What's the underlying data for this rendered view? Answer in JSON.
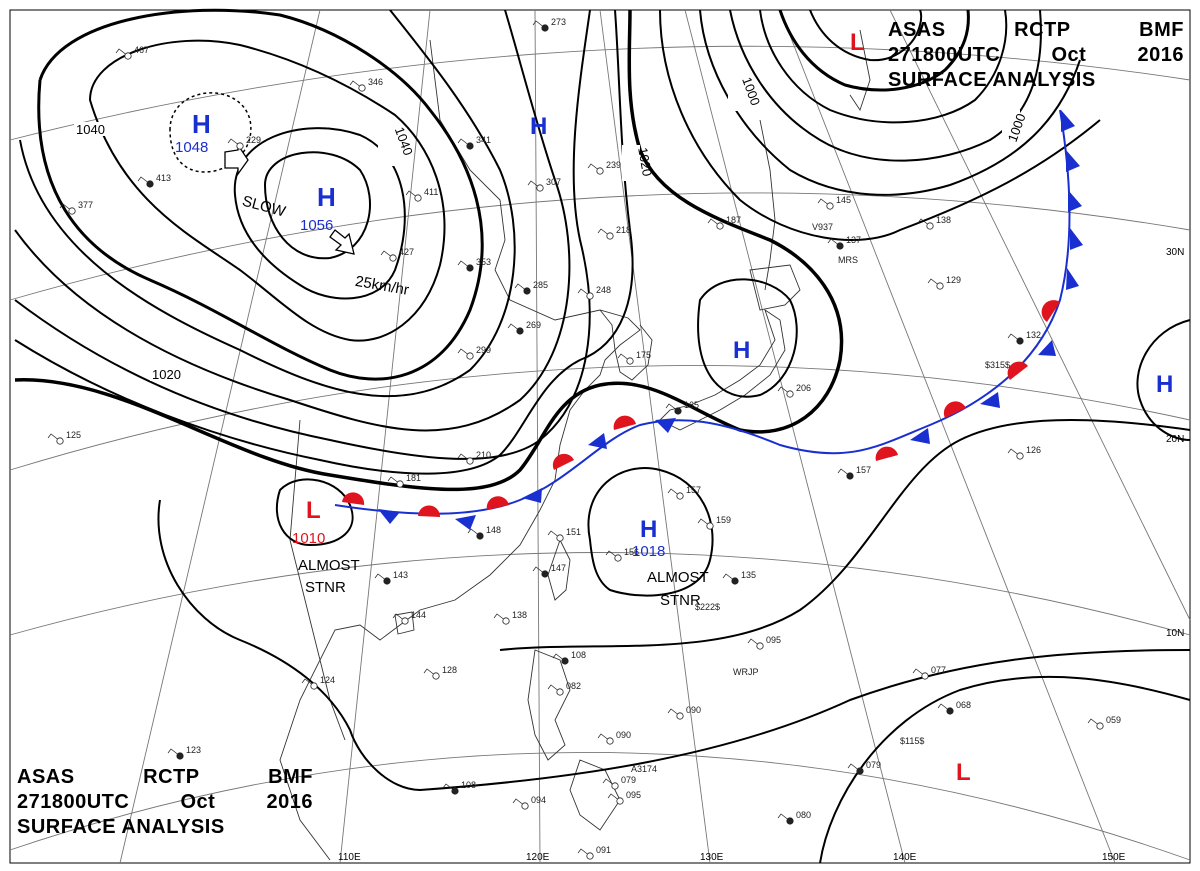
{
  "header": {
    "line1": [
      "ASAS",
      "RCTP",
      "BMF"
    ],
    "line2": [
      "271800UTC",
      "Oct",
      "2016"
    ],
    "line3": "SURFACE ANALYSIS"
  },
  "colors": {
    "high": "#1a2fd0",
    "low": "#e0141e",
    "isobar": "#000000",
    "coast": "#222222",
    "grid": "#666666"
  },
  "pressure_systems": [
    {
      "type": "H",
      "value": "1048",
      "color": "#1a2fd0"
    },
    {
      "type": "H",
      "value": "1056",
      "color": "#1a2fd0"
    },
    {
      "type": "H",
      "value": "",
      "color": "#1a2fd0"
    },
    {
      "type": "H",
      "value": "",
      "color": "#1a2fd0"
    },
    {
      "type": "H",
      "value": "",
      "color": "#1a2fd0"
    },
    {
      "type": "H",
      "value": "1018",
      "color": "#1a2fd0"
    },
    {
      "type": "L",
      "value": "1010",
      "color": "#e0141e"
    },
    {
      "type": "L",
      "value": "",
      "color": "#e0141e"
    },
    {
      "type": "L",
      "value": "",
      "color": "#e0141e"
    }
  ],
  "isobar_labels": [
    "1040",
    "1040",
    "1020",
    "1020",
    "1000",
    "1000"
  ],
  "annotations": {
    "slow": "SLOW",
    "speed": "25km/hr",
    "almost_stnr_1": [
      "ALMOST",
      "STNR"
    ],
    "almost_stnr_2": [
      "ALMOST",
      "STNR"
    ]
  },
  "latitude_labels": [
    "30N",
    "20N",
    "10N"
  ],
  "longitude_labels": [
    "110E",
    "120E",
    "130E",
    "140E",
    "150E"
  ],
  "station_values": [
    "273",
    "467",
    "377",
    "413",
    "229",
    "346",
    "341",
    "411",
    "427",
    "353",
    "307",
    "239",
    "285",
    "248",
    "218",
    "269",
    "299",
    "175",
    "165",
    "187",
    "145",
    "137",
    "138",
    "129",
    "132",
    "206",
    "126",
    "157",
    "159",
    "157",
    "148",
    "210",
    "181",
    "143",
    "144",
    "138",
    "147",
    "151",
    "156",
    "135",
    "128",
    "124",
    "108",
    "082",
    "077",
    "079",
    "090",
    "090",
    "068",
    "059",
    "095",
    "108",
    "094",
    "079",
    "080",
    "091",
    "095",
    "123",
    "125"
  ],
  "station_codes": [
    "V937",
    "MRS",
    "WRJP",
    "A3174",
    "$115$",
    "$315$",
    "$222$"
  ]
}
